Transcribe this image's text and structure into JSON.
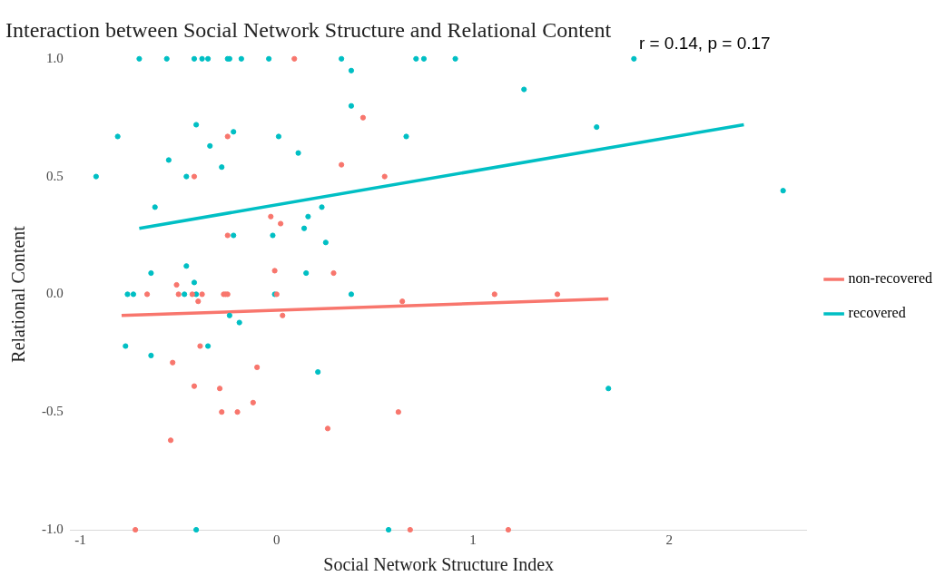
{
  "chart_data": {
    "type": "scatter",
    "title": "Interaction between Social Network Structure and Relational Content",
    "xlabel": "Social Network Structure Index",
    "ylabel": "Relational Content",
    "annotations": [
      "r = 0.14, p = 0.17"
    ],
    "xlim": [
      -1.05,
      2.7
    ],
    "ylim": [
      -1,
      1
    ],
    "xticks": [
      -1,
      0,
      1,
      2
    ],
    "yticks": [
      {
        "value": -1,
        "label": "-1.0"
      },
      {
        "value": -0.5,
        "label": "-0.5"
      },
      {
        "value": 0,
        "label": "0.0"
      },
      {
        "value": 0.5,
        "label": "0.5"
      },
      {
        "value": 1,
        "label": "1.0"
      }
    ],
    "grid": false,
    "legend": "right",
    "series": [
      {
        "marker": "circle",
        "color": "#f8766d",
        "x": [
          0.09,
          -0.25,
          -0.42,
          0.33,
          0.44,
          0.55,
          -0.03,
          0.02,
          -0.25,
          -0.01,
          0.29,
          -0.51,
          -0.66,
          -0.5,
          -0.43,
          -0.38,
          -0.27,
          -0.26,
          -0.25,
          0.0,
          -0.4,
          0.03,
          0.64,
          1.11,
          1.43,
          -0.39,
          -0.53,
          -0.1,
          -0.42,
          -0.29,
          -0.12,
          -0.28,
          -0.2,
          0.26,
          -0.54,
          -0.72,
          0.62,
          0.68,
          1.18
        ],
        "values": [
          1.0,
          0.67,
          0.5,
          0.55,
          0.75,
          0.5,
          0.33,
          0.3,
          0.25,
          0.1,
          0.09,
          0.04,
          0,
          0,
          0,
          0,
          0,
          0,
          0,
          0,
          -0.03,
          -0.09,
          -0.03,
          0,
          0,
          -0.22,
          -0.29,
          -0.31,
          -0.39,
          -0.4,
          -0.46,
          -0.5,
          -0.5,
          -0.57,
          -0.62,
          -1.0,
          -0.5,
          -1.0,
          -1.0
        ]
      },
      {
        "marker": "circle",
        "color": "#00bfc4",
        "x": [
          -0.92,
          -0.81,
          -0.7,
          -0.76,
          -0.73,
          -0.62,
          -0.77,
          -0.64,
          -0.64,
          -0.46,
          -0.55,
          -0.56,
          -0.42,
          -0.38,
          -0.35,
          -0.25,
          -0.24,
          -0.18,
          -0.04,
          0.33,
          -0.46,
          -0.41,
          -0.34,
          -0.28,
          -0.22,
          -0.22,
          0.01,
          0.11,
          -0.02,
          0.14,
          0.16,
          0.23,
          0.25,
          0.15,
          -0.42,
          -0.47,
          -0.41,
          -0.01,
          0.38,
          0.38,
          0.38,
          0.66,
          0.71,
          0.75,
          0.91,
          1.26,
          1.63,
          1.82,
          2.58,
          -0.24,
          -0.19,
          -0.35,
          0.21,
          -0.41,
          1.69,
          0.57
        ],
        "values": [
          0.5,
          0.67,
          1.0,
          0,
          0,
          0.37,
          -0.22,
          -0.26,
          0.09,
          0.12,
          0.57,
          1.0,
          1.0,
          1.0,
          1.0,
          1.0,
          1.0,
          1.0,
          1.0,
          1.0,
          0.5,
          0.72,
          0.63,
          0.54,
          0.69,
          0.25,
          0.67,
          0.6,
          0.25,
          0.28,
          0.33,
          0.37,
          0.22,
          0.09,
          0.05,
          0,
          0,
          0,
          0,
          0.95,
          0.8,
          0.67,
          1.0,
          1.0,
          1.0,
          0.87,
          0.71,
          1.0,
          0.44,
          -0.09,
          -0.12,
          -0.22,
          -0.33,
          -1.0,
          -0.4,
          -1.0
        ]
      },
      {
        "type": "line",
        "name": "non-recovered",
        "color": "#f8766d",
        "x": [
          -0.79,
          1.69
        ],
        "values": [
          -0.09,
          -0.02
        ]
      },
      {
        "type": "line",
        "name": "recovered",
        "color": "#00bfc4",
        "x": [
          -0.7,
          2.38
        ],
        "values": [
          0.28,
          0.72
        ]
      }
    ]
  }
}
